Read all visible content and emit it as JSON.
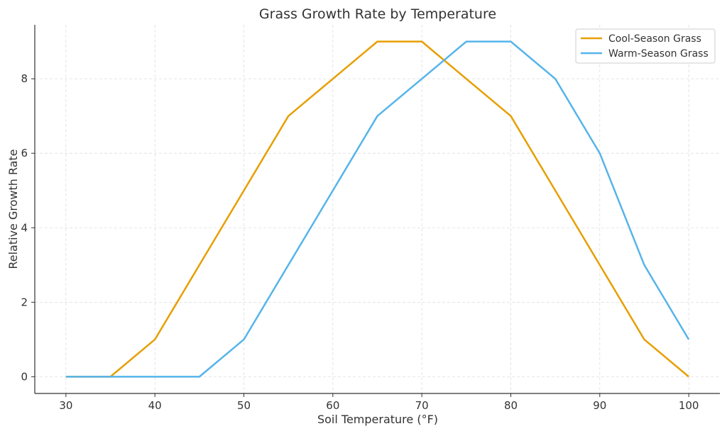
{
  "chart_data": {
    "type": "line",
    "title": "Grass Growth Rate by Temperature",
    "xlabel": "Soil Temperature (°F)",
    "ylabel": "Relative Growth Rate",
    "x": [
      30,
      35,
      40,
      45,
      50,
      55,
      60,
      65,
      70,
      75,
      80,
      85,
      90,
      95,
      100
    ],
    "xlim": [
      26.5,
      103.5
    ],
    "ylim": [
      -0.45,
      9.45
    ],
    "xticks": [
      30,
      40,
      50,
      60,
      70,
      80,
      90,
      100
    ],
    "yticks": [
      0,
      2,
      4,
      6,
      8
    ],
    "grid": true,
    "legend_position": "top-right",
    "series": [
      {
        "name": "Cool-Season Grass",
        "color": "#E69F00",
        "values": [
          0,
          0,
          1,
          3,
          5,
          7,
          8,
          9,
          9,
          8,
          7,
          5,
          3,
          1,
          0
        ]
      },
      {
        "name": "Warm-Season Grass",
        "color": "#56B4E9",
        "values": [
          0,
          0,
          0,
          0,
          1,
          3,
          5,
          7,
          8,
          9,
          9,
          8,
          6,
          3,
          1
        ]
      }
    ]
  }
}
